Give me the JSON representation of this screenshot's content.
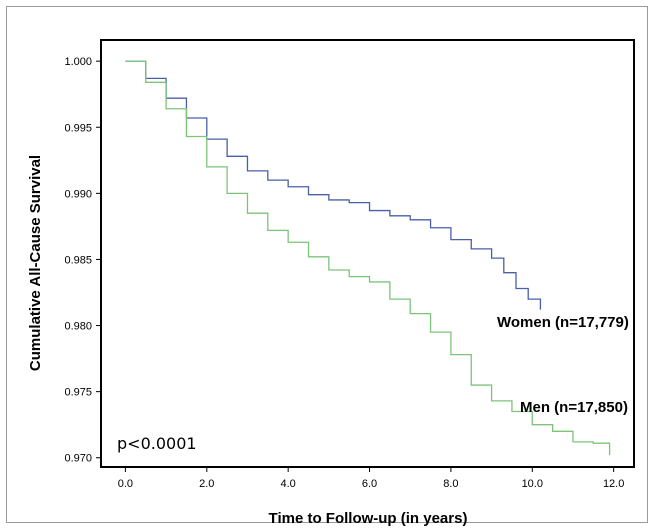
{
  "chart_data": {
    "type": "line",
    "xlabel": "Time to Follow-up (in years)",
    "ylabel": "Cumulative All-Cause Survival",
    "xlim": [
      -0.6,
      12.5
    ],
    "ylim": [
      0.9693,
      1.0016
    ],
    "x_ticks": [
      0.0,
      2.0,
      4.0,
      6.0,
      8.0,
      10.0,
      12.0
    ],
    "x_tick_labels": [
      "0.0",
      "2.0",
      "4.0",
      "6.0",
      "8.0",
      "10.0",
      "12.0"
    ],
    "y_ticks": [
      0.97,
      0.975,
      0.98,
      0.985,
      0.99,
      0.995,
      1.0
    ],
    "y_tick_labels": [
      "0.970",
      "0.975",
      "0.980",
      "0.985",
      "0.990",
      "0.995",
      "1.000"
    ],
    "grid": false,
    "annotation": "p<0.0001",
    "series": [
      {
        "name": "Women (n=17,779)",
        "color": "#4a5fa8",
        "x": [
          0,
          0.5,
          1.0,
          1.5,
          2.0,
          2.5,
          3.0,
          3.5,
          4.0,
          4.5,
          5.0,
          5.5,
          6.0,
          6.5,
          7.0,
          7.5,
          8.0,
          8.5,
          9.0,
          9.3,
          9.6,
          9.9,
          10.2
        ],
        "y": [
          1.0,
          0.9987,
          0.9972,
          0.9957,
          0.9941,
          0.9928,
          0.9917,
          0.991,
          0.9905,
          0.9899,
          0.9895,
          0.9893,
          0.9887,
          0.9883,
          0.988,
          0.9874,
          0.9865,
          0.9858,
          0.9851,
          0.984,
          0.9828,
          0.982,
          0.9812
        ]
      },
      {
        "name": "Men (n=17,850)",
        "color": "#7dc47a",
        "x": [
          0,
          0.5,
          1.0,
          1.5,
          2.0,
          2.5,
          3.0,
          3.5,
          4.0,
          4.5,
          5.0,
          5.5,
          6.0,
          6.5,
          7.0,
          7.5,
          8.0,
          8.5,
          9.0,
          9.5,
          10.0,
          10.5,
          11.0,
          11.5,
          11.9
        ],
        "y": [
          1.0,
          0.9984,
          0.9964,
          0.9943,
          0.992,
          0.99,
          0.9885,
          0.9872,
          0.9863,
          0.9852,
          0.9842,
          0.9837,
          0.9833,
          0.982,
          0.9809,
          0.9795,
          0.9778,
          0.9755,
          0.9743,
          0.9735,
          0.9725,
          0.972,
          0.9712,
          0.9711,
          0.9702
        ]
      }
    ]
  }
}
